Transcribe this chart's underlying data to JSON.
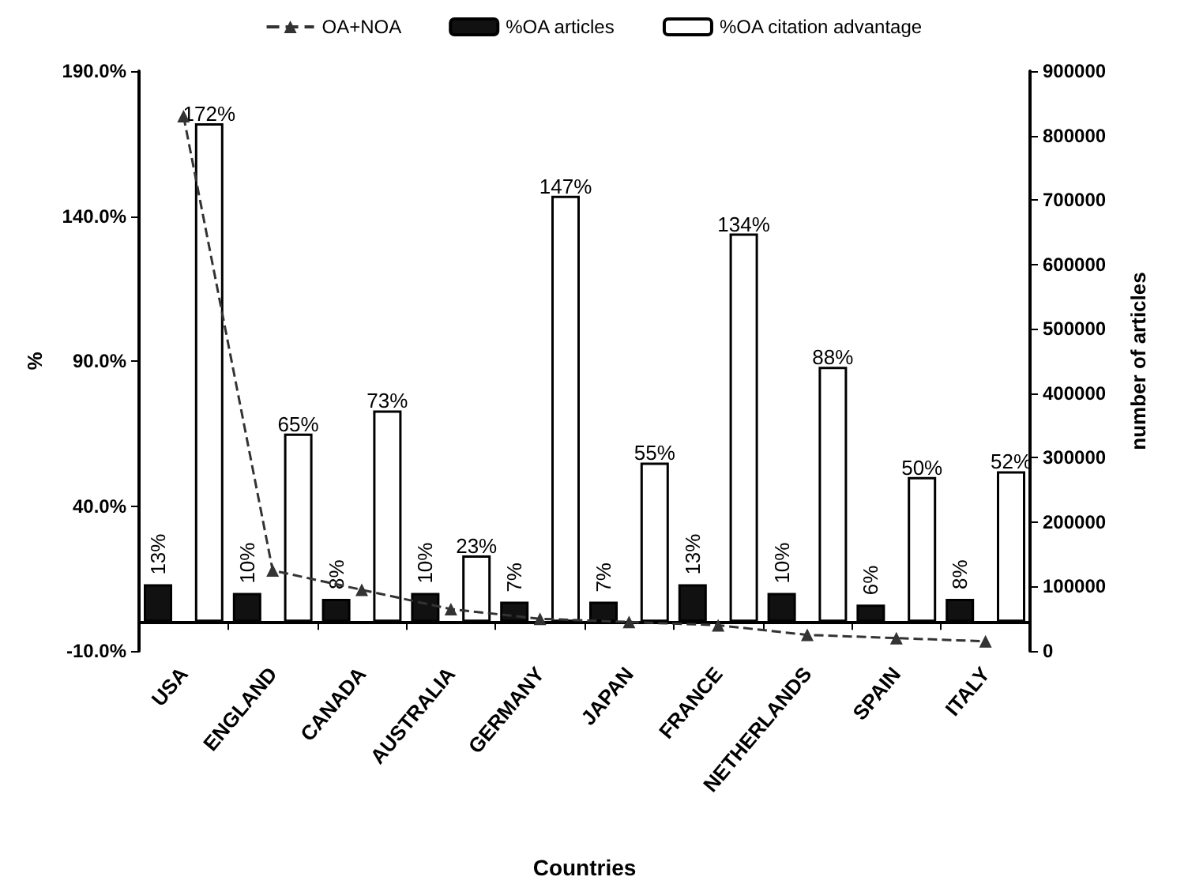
{
  "chart_data": {
    "type": "bar",
    "xlabel": "Countries",
    "ylabel": "%",
    "y2label": "number of articles",
    "categories": [
      "USA",
      "ENGLAND",
      "CANADA",
      "AUSTRALIA",
      "GERMANY",
      "JAPAN",
      "FRANCE",
      "NETHERLANDS",
      "SPAIN",
      "ITALY"
    ],
    "series": [
      {
        "name": "OA+NOA",
        "type": "line",
        "axis": "y2",
        "color": "#333333",
        "marker": "triangle",
        "line_style": "dashed",
        "values": [
          830000,
          125000,
          95000,
          65000,
          50000,
          45000,
          40000,
          25000,
          20000,
          15000
        ]
      },
      {
        "name": "%OA articles",
        "color": "#111111",
        "values": [
          13,
          10,
          8,
          10,
          7,
          7,
          13,
          10,
          6,
          8
        ],
        "value_labels": [
          "13%",
          "10%",
          "8%",
          "10%",
          "7%",
          "7%",
          "13%",
          "10%",
          "6%",
          "8%"
        ]
      },
      {
        "name": "%OA citation advantage",
        "color": "#ffffff",
        "values": [
          172,
          65,
          73,
          23,
          147,
          55,
          134,
          88,
          50,
          52
        ],
        "value_labels": [
          "172%",
          "65%",
          "73%",
          "23%",
          "147%",
          "55%",
          "134%",
          "88%",
          "50%",
          "52%"
        ]
      }
    ],
    "ylim": [
      -10,
      190
    ],
    "yticks": [
      {
        "value": -10,
        "label": "-10.0%"
      },
      {
        "value": 40,
        "label": "40.0%"
      },
      {
        "value": 90,
        "label": "90.0%"
      },
      {
        "value": 140,
        "label": "140.0%"
      },
      {
        "value": 190,
        "label": "190.0%"
      }
    ],
    "y2lim": [
      0,
      900000
    ],
    "y2ticks": [
      0,
      100000,
      200000,
      300000,
      400000,
      500000,
      600000,
      700000,
      800000,
      900000
    ],
    "legend": "top",
    "grid": false
  }
}
